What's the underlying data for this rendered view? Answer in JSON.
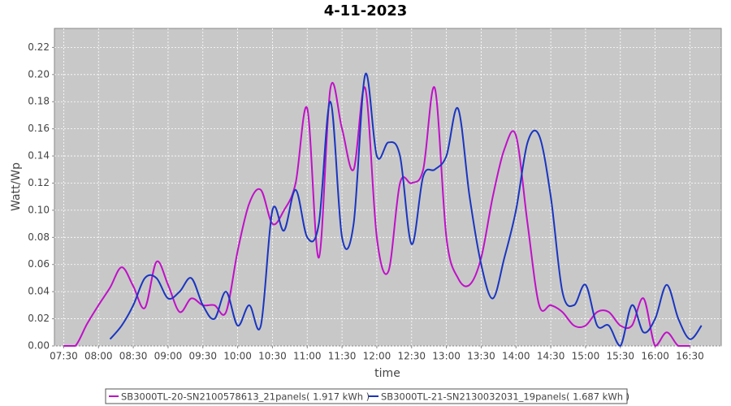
{
  "chart_data": {
    "type": "line",
    "title": "4-11-2023",
    "x_label": "time",
    "y_label": "Watt/Wp",
    "x": [
      "07:30",
      "07:40",
      "07:50",
      "08:00",
      "08:10",
      "08:20",
      "08:30",
      "08:40",
      "08:50",
      "09:00",
      "09:10",
      "09:20",
      "09:30",
      "09:40",
      "09:50",
      "10:00",
      "10:10",
      "10:20",
      "10:30",
      "10:40",
      "10:50",
      "11:00",
      "11:10",
      "11:20",
      "11:30",
      "11:40",
      "11:50",
      "12:00",
      "12:10",
      "12:20",
      "12:30",
      "12:40",
      "12:50",
      "13:00",
      "13:10",
      "13:20",
      "13:30",
      "13:40",
      "13:50",
      "14:00",
      "14:10",
      "14:20",
      "14:30",
      "14:40",
      "14:50",
      "15:00",
      "15:10",
      "15:20",
      "15:30",
      "15:40",
      "15:50",
      "16:00",
      "16:10",
      "16:20",
      "16:30",
      "16:40"
    ],
    "series": [
      {
        "name": "SB3000TL-20-SN2100578613_21panels( 1.917 kWh )",
        "color": "#c010c8",
        "values": [
          0.0,
          0.0,
          0.016,
          0.03,
          0.043,
          0.058,
          0.044,
          0.028,
          0.062,
          0.045,
          0.025,
          0.035,
          0.03,
          0.03,
          0.025,
          0.07,
          0.105,
          0.115,
          0.09,
          0.1,
          0.12,
          0.175,
          0.065,
          0.19,
          0.16,
          0.13,
          0.19,
          0.08,
          0.055,
          0.12,
          0.12,
          0.13,
          0.19,
          0.08,
          0.05,
          0.045,
          0.065,
          0.11,
          0.145,
          0.155,
          0.09,
          0.03,
          0.03,
          0.025,
          0.015,
          0.015,
          0.025,
          0.025,
          0.015,
          0.015,
          0.035,
          0.0,
          0.01,
          0.0,
          0.0,
          null
        ]
      },
      {
        "name": "SB3000TL-21-SN2130032031_19panels( 1.687 kWh )",
        "color": "#1a35c0",
        "values": [
          null,
          null,
          null,
          null,
          0.005,
          0.015,
          0.03,
          0.05,
          0.05,
          0.035,
          0.04,
          0.05,
          0.03,
          0.02,
          0.04,
          0.015,
          0.03,
          0.015,
          0.1,
          0.085,
          0.115,
          0.08,
          0.09,
          0.18,
          0.08,
          0.09,
          0.2,
          0.14,
          0.15,
          0.14,
          0.075,
          0.125,
          0.13,
          0.14,
          0.175,
          0.11,
          0.06,
          0.035,
          0.065,
          0.1,
          0.15,
          0.155,
          0.11,
          0.04,
          0.03,
          0.045,
          0.015,
          0.015,
          0.0,
          0.03,
          0.01,
          0.02,
          0.045,
          0.02,
          0.005,
          0.015
        ]
      }
    ],
    "xlim": [
      "07:22",
      "16:57"
    ],
    "xticks": [
      "07:30",
      "08:00",
      "08:30",
      "09:00",
      "09:30",
      "10:00",
      "10:30",
      "11:00",
      "11:30",
      "12:00",
      "12:30",
      "13:00",
      "13:30",
      "14:00",
      "14:30",
      "15:00",
      "15:30",
      "16:00",
      "16:30"
    ],
    "ylim": [
      0,
      0.234
    ],
    "yticks": [
      {
        "value": 0,
        "label": "0.00"
      },
      {
        "value": 0.02,
        "label": "0.02"
      },
      {
        "value": 0.04,
        "label": "0.04"
      },
      {
        "value": 0.06,
        "label": "0.06"
      },
      {
        "value": 0.08,
        "label": "0.08"
      },
      {
        "value": 0.1,
        "label": "0.10"
      },
      {
        "value": 0.12,
        "label": "0.12"
      },
      {
        "value": 0.14,
        "label": "0.14"
      },
      {
        "value": 0.16,
        "label": "0.16"
      },
      {
        "value": 0.18,
        "label": "0.18"
      },
      {
        "value": 0.2,
        "label": "0.20"
      },
      {
        "value": 0.22,
        "label": "0.22"
      }
    ],
    "grid": true
  }
}
